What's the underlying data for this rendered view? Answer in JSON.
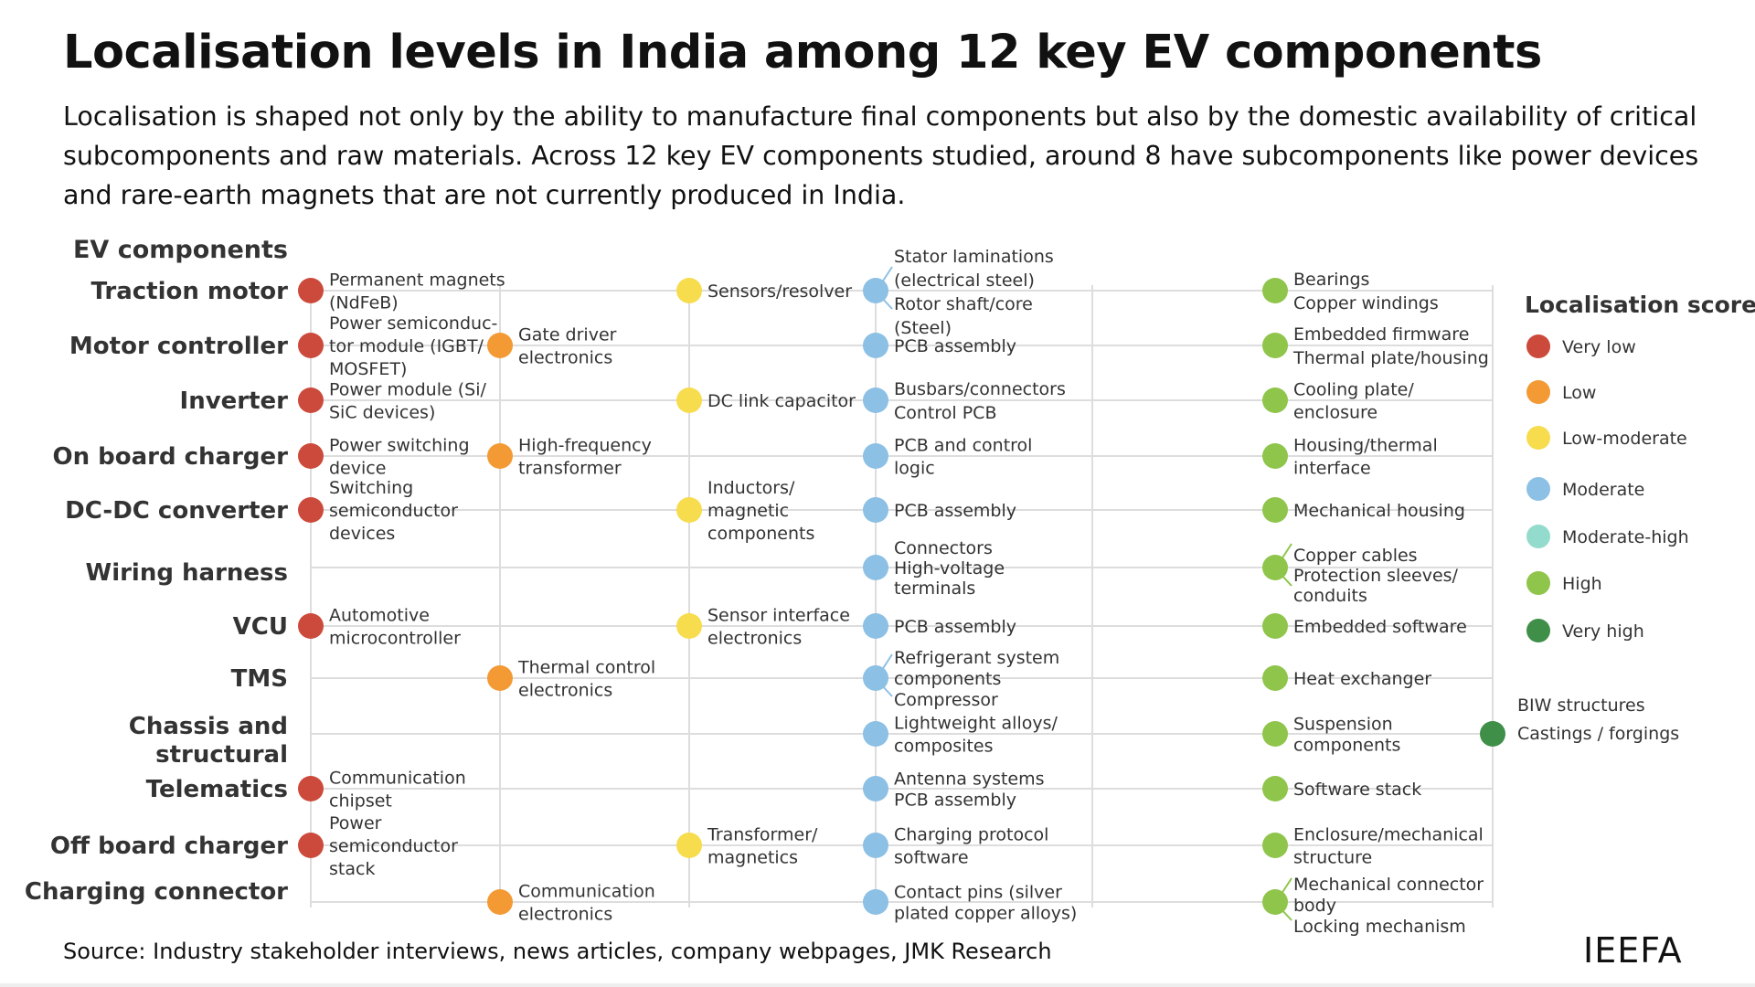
{
  "title": "Localisation levels in India among 12 key EV components",
  "subtitle": "Localisation is shaped not only by the ability to manufacture final components but also by the domestic availability of critical subcomponents and raw materials. Across 12 key EV components studied, around 8 have subcomponents like power devices and rare-earth magnets that are not currently produced in India.",
  "source": "Source: Industry stakeholder interviews, news articles, company webpages, JMK Research",
  "logo": "IEEFA",
  "chart_data": {
    "type": "table",
    "rows_header": "EV components",
    "rows": [
      "Traction motor",
      "Motor controller",
      "Inverter",
      "On board charger",
      "DC-DC converter",
      "Wiring harness",
      "VCU",
      "TMS",
      "Chassis and structural",
      "Telematics",
      "Off board charger",
      "Charging connector"
    ],
    "score_levels": [
      "Very low",
      "Low",
      "Low-moderate",
      "Moderate",
      "Moderate-high",
      "High",
      "Very high"
    ],
    "colors": {
      "Very low": "#cc4a3b",
      "Low": "#f39a35",
      "Low-moderate": "#f7dc4d",
      "Moderate": "#8cc0e4",
      "Moderate-high": "#93dccd",
      "High": "#8fc54b",
      "Very high": "#3f8f48"
    },
    "legend_title": "Localisation score",
    "legend_placement": "right",
    "entries": [
      {
        "row": "Traction motor",
        "level": "Very low",
        "label": "Permanent magnets (NdFeB)"
      },
      {
        "row": "Traction motor",
        "level": "Low-moderate",
        "label": "Sensors/resolver"
      },
      {
        "row": "Traction motor",
        "level": "Moderate",
        "label": "Stator laminations (electrical steel) | Rotor shaft/core (Steel)"
      },
      {
        "row": "Traction motor",
        "level": "High",
        "label": "Bearings | Copper windings"
      },
      {
        "row": "Motor controller",
        "level": "Very low",
        "label": "Power semiconductor module (IGBT/MOSFET)"
      },
      {
        "row": "Motor controller",
        "level": "Low",
        "label": "Gate driver electronics"
      },
      {
        "row": "Motor controller",
        "level": "Moderate",
        "label": "PCB assembly"
      },
      {
        "row": "Motor controller",
        "level": "High",
        "label": "Embedded firmware | Thermal plate/housing"
      },
      {
        "row": "Inverter",
        "level": "Very low",
        "label": "Power module (Si/SiC devices)"
      },
      {
        "row": "Inverter",
        "level": "Low-moderate",
        "label": "DC link capacitor"
      },
      {
        "row": "Inverter",
        "level": "Moderate",
        "label": "Busbars/connectors | Control PCB"
      },
      {
        "row": "Inverter",
        "level": "High",
        "label": "Cooling plate/enclosure"
      },
      {
        "row": "On board charger",
        "level": "Very low",
        "label": "Power switching device"
      },
      {
        "row": "On board charger",
        "level": "Low",
        "label": "High-frequency transformer"
      },
      {
        "row": "On board charger",
        "level": "Moderate",
        "label": "PCB and control logic"
      },
      {
        "row": "On board charger",
        "level": "High",
        "label": "Housing/thermal interface"
      },
      {
        "row": "DC-DC converter",
        "level": "Very low",
        "label": "Switching semiconductor devices"
      },
      {
        "row": "DC-DC converter",
        "level": "Low-moderate",
        "label": "Inductors/magnetic components"
      },
      {
        "row": "DC-DC converter",
        "level": "Moderate",
        "label": "PCB assembly"
      },
      {
        "row": "DC-DC converter",
        "level": "High",
        "label": "Mechanical housing"
      },
      {
        "row": "Wiring harness",
        "level": "Moderate",
        "label": "Connectors | High-voltage terminals"
      },
      {
        "row": "Wiring harness",
        "level": "High",
        "label": "Copper cables | Protection sleeves/conduits"
      },
      {
        "row": "VCU",
        "level": "Very low",
        "label": "Automotive microcontroller"
      },
      {
        "row": "VCU",
        "level": "Low-moderate",
        "label": "Sensor interface electronics"
      },
      {
        "row": "VCU",
        "level": "Moderate",
        "label": "PCB assembly"
      },
      {
        "row": "VCU",
        "level": "High",
        "label": "Embedded software"
      },
      {
        "row": "TMS",
        "level": "Low",
        "label": "Thermal control electronics"
      },
      {
        "row": "TMS",
        "level": "Moderate",
        "label": "Refrigerant system components | Compressor"
      },
      {
        "row": "TMS",
        "level": "High",
        "label": "Heat exchanger"
      },
      {
        "row": "Chassis and structural",
        "level": "Moderate",
        "label": "Lightweight alloys/composites"
      },
      {
        "row": "Chassis and structural",
        "level": "High",
        "label": "Suspension components"
      },
      {
        "row": "Chassis and structural",
        "level": "Very high",
        "label": "BIW structures | Castings / forgings"
      },
      {
        "row": "Telematics",
        "level": "Very low",
        "label": "Communication chipset"
      },
      {
        "row": "Telematics",
        "level": "Moderate",
        "label": "Antenna systems | PCB assembly"
      },
      {
        "row": "Telematics",
        "level": "High",
        "label": "Software stack"
      },
      {
        "row": "Off board charger",
        "level": "Very low",
        "label": "Power semiconductor stack"
      },
      {
        "row": "Off board charger",
        "level": "Low-moderate",
        "label": "Transformer/magnetics"
      },
      {
        "row": "Off board charger",
        "level": "Moderate",
        "label": "Charging protocol software"
      },
      {
        "row": "Off board charger",
        "level": "High",
        "label": "Enclosure/mechanical structure"
      },
      {
        "row": "Charging connector",
        "level": "Low",
        "label": "Communication electronics"
      },
      {
        "row": "Charging connector",
        "level": "Moderate",
        "label": "Contact pins (silver plated copper alloys)"
      },
      {
        "row": "Charging connector",
        "level": "High",
        "label": "Mechanical connector body | Locking mechanism"
      }
    ]
  }
}
